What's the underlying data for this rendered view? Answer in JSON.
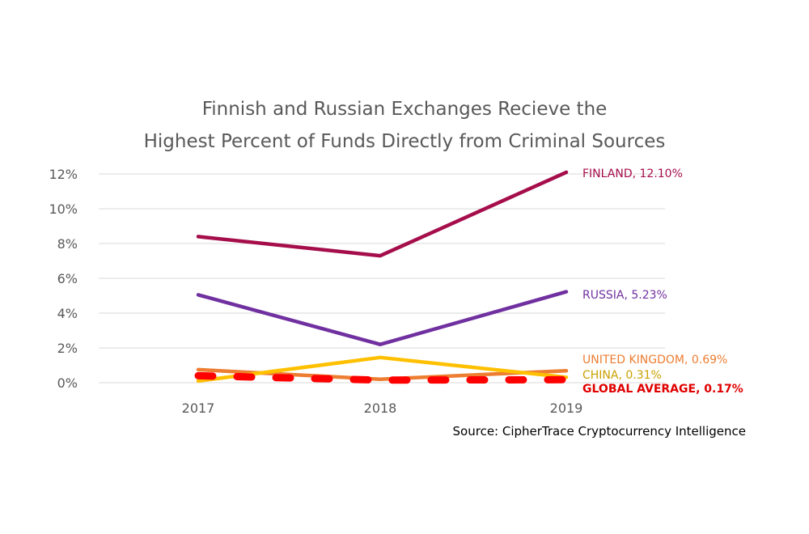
{
  "chart_data": {
    "type": "line",
    "title_lines": [
      "Finnish and Russian Exchanges Recieve the",
      "Highest Percent of Funds Directly from Criminal Sources"
    ],
    "categories": [
      "2017",
      "2018",
      "2019"
    ],
    "ylim": [
      0,
      12
    ],
    "y_ticks": [
      0,
      2,
      4,
      6,
      8,
      10,
      12
    ],
    "y_tick_labels": [
      "0%",
      "2%",
      "4%",
      "6%",
      "8%",
      "10%",
      "12%"
    ],
    "grid": "horizontal",
    "series": [
      {
        "name": "FINLAND",
        "values": [
          8.4,
          7.3,
          12.1
        ],
        "color": "#A50D4B",
        "dashed": false,
        "end_label": "FINLAND, 12.10%",
        "bold": false
      },
      {
        "name": "RUSSIA",
        "values": [
          5.05,
          2.2,
          5.23
        ],
        "color": "#7030A0",
        "dashed": false,
        "end_label": "RUSSIA, 5.23%",
        "bold": false
      },
      {
        "name": "UNITED KINGDOM",
        "values": [
          0.75,
          0.2,
          0.69
        ],
        "color": "#ED7D31",
        "dashed": false,
        "end_label": "UNITED KINGDOM, 0.69%",
        "bold": false
      },
      {
        "name": "CHINA",
        "values": [
          0.1,
          1.45,
          0.31
        ],
        "color": "#FFC000",
        "dashed": false,
        "end_label": "CHINA, 0.31%",
        "label_color": "#C9A000",
        "bold": false
      },
      {
        "name": "GLOBAL AVERAGE",
        "values": [
          0.4,
          0.15,
          0.17
        ],
        "color": "#FF0000",
        "dashed": true,
        "end_label": "GLOBAL AVERAGE, 0.17%",
        "label_color": "#E00000",
        "bold": true
      }
    ],
    "source": "Source: CipherTrace Cryptocurrency Intelligence"
  }
}
